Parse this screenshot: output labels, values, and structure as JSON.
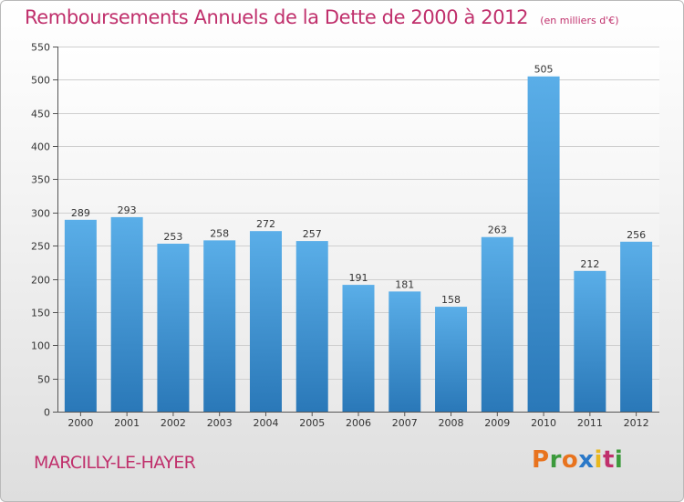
{
  "chart_data": {
    "type": "bar",
    "title": "Remboursements Annuels de la Dette de 2000 à 2012",
    "subtitle": "(en milliers d'€)",
    "categories": [
      "2000",
      "2001",
      "2002",
      "2003",
      "2004",
      "2005",
      "2006",
      "2007",
      "2008",
      "2009",
      "2010",
      "2011",
      "2012"
    ],
    "values": [
      289,
      293,
      253,
      258,
      272,
      257,
      191,
      181,
      158,
      263,
      505,
      212,
      256
    ],
    "ylim": [
      0,
      550
    ],
    "yticks": [
      0,
      50,
      100,
      150,
      200,
      250,
      300,
      350,
      400,
      450,
      500,
      550
    ],
    "grid": true,
    "data_labels": true,
    "bar_color_top": "#5aaee8",
    "bar_color_bottom": "#2a78b8"
  },
  "footer": {
    "place": "MARCILLY-LE-HAYER",
    "brand": "Proxiti",
    "brand_colors": [
      "#e8731e",
      "#3c9a3c",
      "#e8731e",
      "#2a78c8",
      "#e8b81e",
      "#c0306c",
      "#3c9a3c"
    ]
  }
}
